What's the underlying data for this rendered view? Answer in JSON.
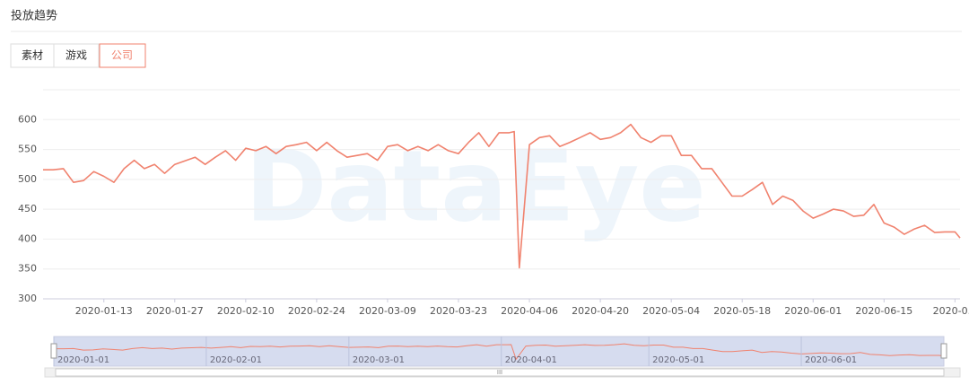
{
  "header": {
    "title": "投放趋势",
    "tabs": [
      "素材",
      "游戏",
      "公司"
    ],
    "active_tab": 2
  },
  "chart_data": {
    "type": "line",
    "watermark": "DataEye",
    "color": "#f0826e",
    "x": [
      "2020-01-01",
      "2020-01-03",
      "2020-01-05",
      "2020-01-07",
      "2020-01-09",
      "2020-01-11",
      "2020-01-13",
      "2020-01-15",
      "2020-01-17",
      "2020-01-19",
      "2020-01-21",
      "2020-01-23",
      "2020-01-25",
      "2020-01-27",
      "2020-01-29",
      "2020-01-31",
      "2020-02-02",
      "2020-02-04",
      "2020-02-06",
      "2020-02-08",
      "2020-02-10",
      "2020-02-12",
      "2020-02-14",
      "2020-02-16",
      "2020-02-18",
      "2020-02-20",
      "2020-02-22",
      "2020-02-24",
      "2020-02-26",
      "2020-02-28",
      "2020-03-01",
      "2020-03-03",
      "2020-03-05",
      "2020-03-07",
      "2020-03-09",
      "2020-03-11",
      "2020-03-13",
      "2020-03-15",
      "2020-03-17",
      "2020-03-19",
      "2020-03-21",
      "2020-03-23",
      "2020-03-25",
      "2020-03-27",
      "2020-03-29",
      "2020-03-31",
      "2020-04-02",
      "2020-04-03",
      "2020-04-04",
      "2020-04-06",
      "2020-04-08",
      "2020-04-10",
      "2020-04-12",
      "2020-04-14",
      "2020-04-16",
      "2020-04-18",
      "2020-04-20",
      "2020-04-22",
      "2020-04-24",
      "2020-04-26",
      "2020-04-28",
      "2020-04-30",
      "2020-05-02",
      "2020-05-04",
      "2020-05-06",
      "2020-05-08",
      "2020-05-10",
      "2020-05-12",
      "2020-05-14",
      "2020-05-16",
      "2020-05-18",
      "2020-05-20",
      "2020-05-22",
      "2020-05-24",
      "2020-05-26",
      "2020-05-28",
      "2020-05-30",
      "2020-06-01",
      "2020-06-03",
      "2020-06-05",
      "2020-06-07",
      "2020-06-09",
      "2020-06-11",
      "2020-06-13",
      "2020-06-15",
      "2020-06-17",
      "2020-06-19",
      "2020-06-21",
      "2020-06-23",
      "2020-06-25",
      "2020-06-27",
      "2020-06-29",
      "2020-06-30"
    ],
    "values": [
      516,
      516,
      518,
      495,
      498,
      513,
      505,
      495,
      518,
      532,
      518,
      525,
      510,
      525,
      531,
      537,
      525,
      537,
      548,
      532,
      552,
      548,
      555,
      543,
      555,
      558,
      562,
      548,
      562,
      548,
      537,
      540,
      543,
      532,
      555,
      558,
      548,
      555,
      548,
      558,
      548,
      543,
      562,
      578,
      555,
      578,
      578,
      580,
      352,
      558,
      570,
      573,
      555,
      562,
      570,
      578,
      567,
      570,
      578,
      592,
      570,
      562,
      573,
      573,
      540,
      540,
      518,
      518,
      495,
      472,
      472,
      483,
      495,
      458,
      472,
      465,
      447,
      435,
      442,
      450,
      447,
      438,
      440,
      458,
      427,
      420,
      408,
      417,
      423,
      411,
      412,
      412,
      402
    ],
    "xlim": [
      "2020-01-01",
      "2020-06-30"
    ],
    "xticks": [
      "2020-01-13",
      "2020-01-27",
      "2020-02-10",
      "2020-02-24",
      "2020-03-09",
      "2020-03-23",
      "2020-04-06",
      "2020-04-20",
      "2020-05-04",
      "2020-05-18",
      "2020-06-01",
      "2020-06-15",
      {
        "value": "2020-06-29",
        "label": "2020-0..."
      }
    ],
    "ylim": [
      300,
      650
    ],
    "yticks": [
      300,
      350,
      400,
      450,
      500,
      550,
      600
    ],
    "grid": true,
    "zoom": {
      "labels": [
        "2020-01-01",
        "2020-02-01",
        "2020-03-01",
        "2020-04-01",
        "2020-05-01",
        "2020-06-01"
      ],
      "scroll_label": "III"
    }
  }
}
